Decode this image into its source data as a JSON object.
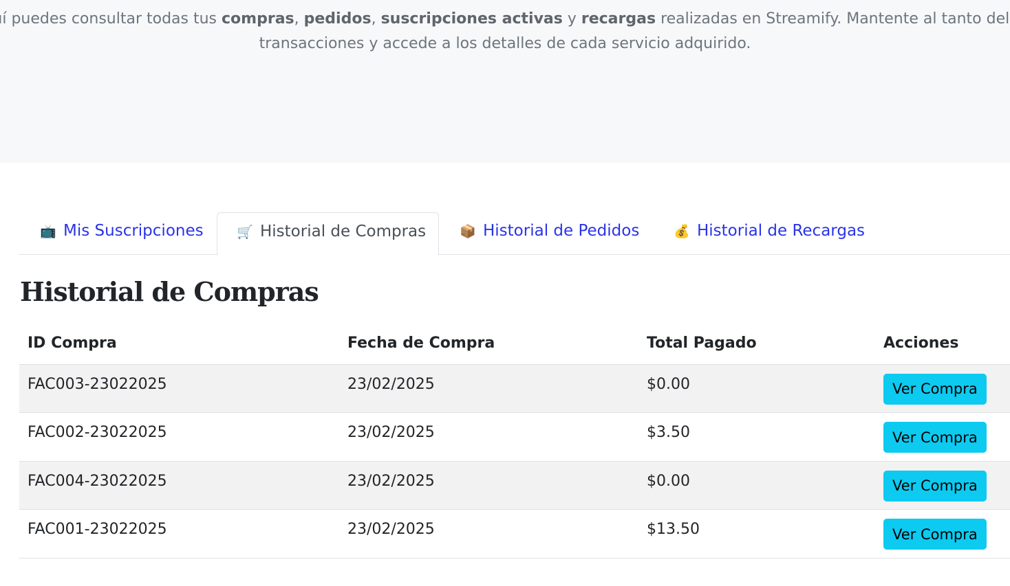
{
  "intro": {
    "line1": [
      {
        "t": "Aquí puedes consultar todas tus ",
        "b": false
      },
      {
        "t": "compras",
        "b": true
      },
      {
        "t": ", ",
        "b": false
      },
      {
        "t": "pedidos",
        "b": true
      },
      {
        "t": ", ",
        "b": false
      },
      {
        "t": "suscripciones activas",
        "b": true
      },
      {
        "t": " y ",
        "b": false
      },
      {
        "t": "recargas",
        "b": true
      },
      {
        "t": " realizadas en Streamify. Mantente al tanto del",
        "b": false
      }
    ],
    "line2": "transacciones y accede a los detalles de cada servicio adquirido."
  },
  "tabs": [
    {
      "icon": "📺",
      "label": "Mis Suscripciones",
      "active": false
    },
    {
      "icon": "🛒",
      "label": "Historial de Compras",
      "active": true
    },
    {
      "icon": "📦",
      "label": "Historial de Pedidos",
      "active": false
    },
    {
      "icon": "💰",
      "label": "Historial de Recargas",
      "active": false
    }
  ],
  "section_title": "Historial de Compras",
  "table": {
    "headers": [
      "ID Compra",
      "Fecha de Compra",
      "Total Pagado",
      "Acciones"
    ],
    "rows": [
      {
        "id": "FAC003-23022025",
        "date": "23/02/2025",
        "total": "$0.00",
        "action": "Ver Compra"
      },
      {
        "id": "FAC002-23022025",
        "date": "23/02/2025",
        "total": "$3.50",
        "action": "Ver Compra"
      },
      {
        "id": "FAC004-23022025",
        "date": "23/02/2025",
        "total": "$0.00",
        "action": "Ver Compra"
      },
      {
        "id": "FAC001-23022025",
        "date": "23/02/2025",
        "total": "$13.50",
        "action": "Ver Compra"
      }
    ]
  },
  "colors": {
    "link": "#2a34e8",
    "button": "#0dcaf0",
    "stripe": "#f2f2f2"
  }
}
